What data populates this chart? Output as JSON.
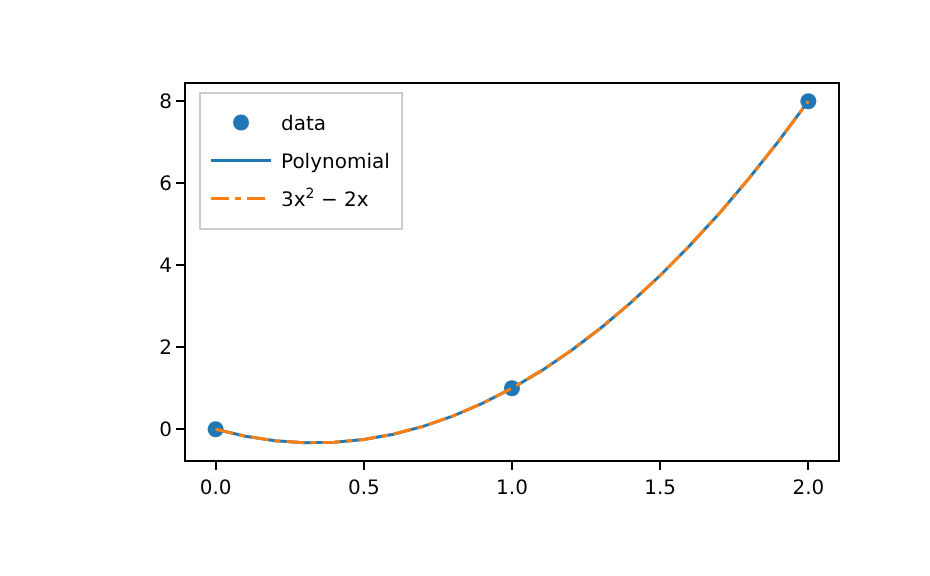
{
  "chart_data": {
    "type": "line",
    "xlim": [
      -0.1,
      2.1
    ],
    "ylim": [
      -0.75,
      8.42
    ],
    "xticks": [
      {
        "value": 0,
        "label": "0.0"
      },
      {
        "value": 0.5,
        "label": "0.5"
      },
      {
        "value": 1,
        "label": "1.0"
      },
      {
        "value": 1.5,
        "label": "1.5"
      },
      {
        "value": 2,
        "label": "2.0"
      }
    ],
    "yticks": [
      0,
      2,
      4,
      6,
      8
    ],
    "grid": false,
    "legend": "top left",
    "series": [
      {
        "name": "data",
        "type": "scatter",
        "marker": "circle",
        "color": "#1f77b4",
        "x": [
          0,
          1,
          2
        ],
        "values": [
          0,
          1,
          8
        ]
      },
      {
        "name": "Polynomial",
        "marker": "none",
        "line_style": "solid",
        "color": "#1f77b4",
        "x": [
          0,
          0.1,
          0.2,
          0.3,
          0.4,
          0.5,
          0.6,
          0.7,
          0.8,
          0.9,
          1,
          1.1,
          1.2,
          1.3,
          1.4,
          1.5,
          1.6,
          1.7,
          1.8,
          1.9,
          2
        ],
        "values": [
          0,
          -0.17,
          -0.28,
          -0.33,
          -0.32,
          -0.25,
          -0.12,
          0.07,
          0.32,
          0.63,
          1,
          1.43,
          1.92,
          2.47,
          3.08,
          3.75,
          4.48,
          5.27,
          6.12,
          7.03,
          8
        ]
      },
      {
        "name": "3x$^{2}$ − 2x",
        "marker": "none",
        "line_style": "dashdot",
        "color": "#ff7f0e",
        "x": [
          0,
          0.1,
          0.2,
          0.3,
          0.4,
          0.5,
          0.6,
          0.7,
          0.8,
          0.9,
          1,
          1.1,
          1.2,
          1.3,
          1.4,
          1.5,
          1.6,
          1.7,
          1.8,
          1.9,
          2
        ],
        "values": [
          0,
          -0.17,
          -0.28,
          -0.33,
          -0.32,
          -0.25,
          -0.12,
          0.07,
          0.32,
          0.63,
          1,
          1.43,
          1.92,
          2.47,
          3.08,
          3.75,
          4.48,
          5.27,
          6.12,
          7.03,
          8
        ]
      }
    ]
  }
}
